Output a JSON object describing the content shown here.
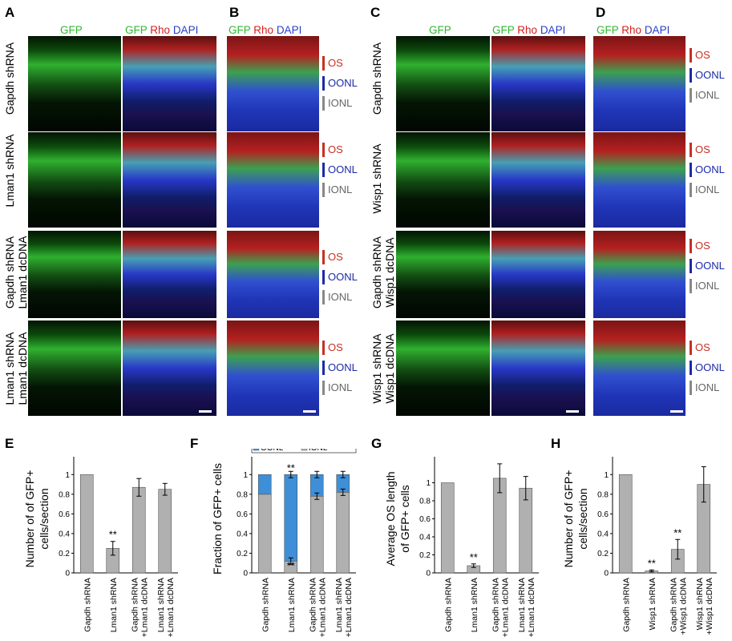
{
  "panels": {
    "A": "A",
    "B": "B",
    "C": "C",
    "D": "D",
    "E": "E",
    "F": "F",
    "G": "G",
    "H": "H"
  },
  "stain": {
    "gfp": "GFP",
    "rho": "Rho",
    "dapi": "DAPI"
  },
  "rowsA": [
    {
      "l1": "Gapdh shRNA",
      "l2": ""
    },
    {
      "l1": "Lman1 shRNA",
      "l2": ""
    },
    {
      "l1": "Gapdh  shRNA",
      "l2": "Lman1 dcDNA"
    },
    {
      "l1": "Lman1  shRNA",
      "l2": "Lman1 dcDNA"
    }
  ],
  "rowsC": [
    {
      "l1": "Gapdh shRNA",
      "l2": ""
    },
    {
      "l1": "Wisp1  shRNA",
      "l2": ""
    },
    {
      "l1": "Gapdh  shRNA",
      "l2": "Wisp1 dcDNA"
    },
    {
      "l1": "Wisp1 shRNA",
      "l2": "Wisp1 dcDNA"
    }
  ],
  "layers": {
    "os": "OS",
    "oonl": "OONL",
    "ionl": "IONL"
  },
  "colors": {
    "gfp": "#2db82d",
    "rho": "#d22020",
    "dapi": "#2840c8",
    "bar": "#b0b0b0",
    "oonl": "#3f8fd8",
    "ionl": "#b0b0b0"
  },
  "chart_data": [
    {
      "panel": "E",
      "type": "bar",
      "categories": [
        "Gapdh shRNA",
        "Lman1 shRNA",
        "Gapdh shRNA +Lman1 dcDNA",
        "Lman1 shRNA +Lman1 dcDNA"
      ],
      "values": [
        1.0,
        0.25,
        0.87,
        0.85
      ],
      "errors": [
        0,
        0.07,
        0.09,
        0.06
      ],
      "significance": [
        "",
        "**",
        "",
        ""
      ],
      "ylabel": "Number of  of GFP+ cells/section",
      "ylim": [
        0,
        1.1
      ],
      "yticks": [
        "0",
        "0.2",
        "0.4",
        "0.6",
        "0.8",
        "1"
      ]
    },
    {
      "panel": "F",
      "type": "bar",
      "stacked": true,
      "categories": [
        "Gapdh shRNA",
        "Lman1 shRNA",
        "Gapdh shRNA +Lman1 dcDNA",
        "Lman1 shRNA +Lman1 dcDNA"
      ],
      "series": [
        {
          "name": "IONL",
          "values": [
            0.8,
            0.12,
            0.78,
            0.82
          ]
        },
        {
          "name": "OONL",
          "values": [
            0.2,
            0.88,
            0.22,
            0.18
          ]
        }
      ],
      "significance": [
        "",
        "**",
        "",
        ""
      ],
      "ylabel": "Fraction of GFP+ cells",
      "ylim": [
        0,
        1.1
      ],
      "yticks": [
        "0",
        "0.2",
        "0.4",
        "0.6",
        "0.8",
        "1"
      ],
      "legend": "top"
    },
    {
      "panel": "G",
      "type": "bar",
      "categories": [
        "Gapdh shRNA",
        "Lman1 shRNA",
        "Gapdh shRNA +Lman1 dcDNA",
        "Lman1 shRNA +Lman1 dcDNA"
      ],
      "values": [
        1.0,
        0.08,
        1.05,
        0.94
      ],
      "errors": [
        0,
        0.02,
        0.16,
        0.13
      ],
      "significance": [
        "",
        "**",
        "",
        ""
      ],
      "ylabel": "Average OS length of GFP+ cells",
      "ylim": [
        0,
        1.2
      ],
      "yticks": [
        "0",
        "0.2",
        "0.4",
        "0.6",
        "0.8",
        "1"
      ]
    },
    {
      "panel": "H",
      "type": "bar",
      "categories": [
        "Gapdh shRNA",
        "Wisp1 shRNA",
        "Gapdh shRNA +Wisp1 dcDNA",
        "Wisp1 shRNA +Wisp1 dcDNA"
      ],
      "values": [
        1.0,
        0.02,
        0.24,
        0.9
      ],
      "errors": [
        0,
        0.01,
        0.1,
        0.18
      ],
      "significance": [
        "",
        "**",
        "**",
        ""
      ],
      "ylabel": "Number of  of GFP+ cells/section",
      "ylim": [
        0,
        1.1
      ],
      "yticks": [
        "0",
        "0.2",
        "0.4",
        "0.6",
        "0.8",
        "1"
      ]
    }
  ]
}
